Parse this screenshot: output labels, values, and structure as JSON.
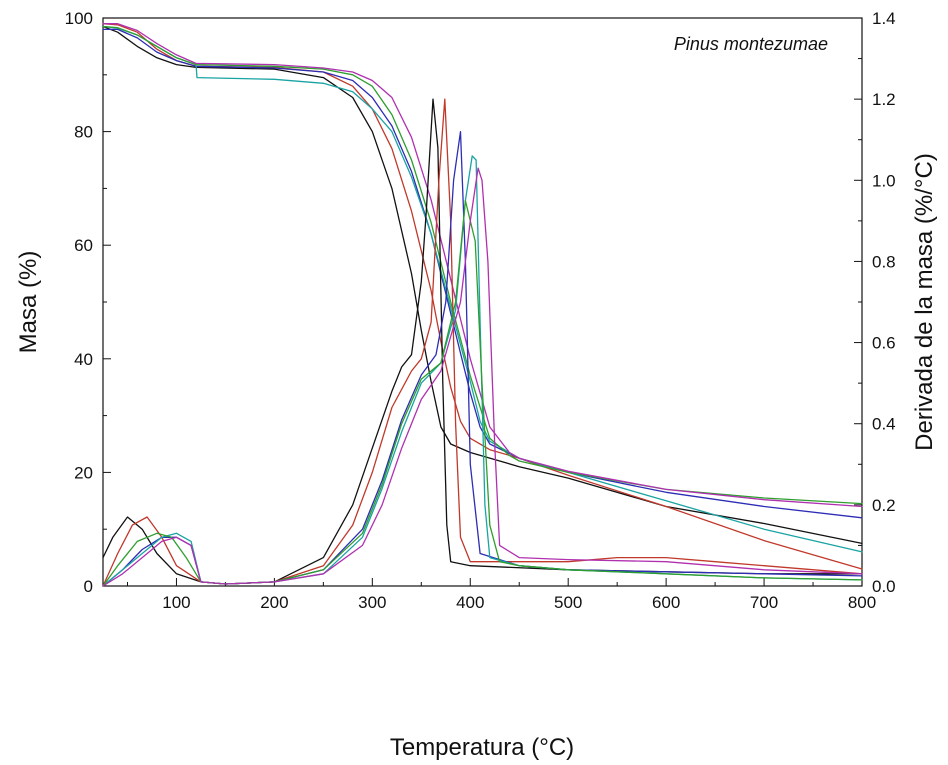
{
  "chart_data": {
    "type": "line",
    "title": "",
    "annotation": "Pinus montezumae",
    "xlabel": "Temperatura (°C)",
    "ylabel_left": "Masa (%)",
    "ylabel_right": "Derivada de la masa (%/°C)",
    "xlim": [
      25,
      800
    ],
    "ylim_left": [
      0,
      100
    ],
    "ylim_right": [
      0,
      1.4
    ],
    "x_ticks": [
      "100",
      "200",
      "300",
      "400",
      "500",
      "600",
      "700",
      "800"
    ],
    "y_ticks_left": [
      "0",
      "20",
      "40",
      "60",
      "80",
      "100"
    ],
    "y_ticks_right": [
      "0.0",
      "0.2",
      "0.4",
      "0.6",
      "0.8",
      "1.0",
      "1.2",
      "1.4"
    ],
    "grid": false,
    "legend": "none",
    "series": [
      {
        "color": "#111111",
        "axis": "left",
        "x": [
          25,
          40,
          60,
          80,
          100,
          120,
          200,
          250,
          280,
          300,
          320,
          340,
          350,
          360,
          370,
          380,
          400,
          450,
          500,
          600,
          700,
          800
        ],
        "y": [
          98.5,
          97.5,
          95,
          93,
          91.8,
          91.3,
          91,
          89.5,
          86,
          80,
          70,
          55,
          45,
          36,
          28,
          25,
          23.5,
          21,
          19,
          14,
          11,
          7.5
        ]
      },
      {
        "color": "#c0392b",
        "axis": "left",
        "x": [
          25,
          40,
          60,
          80,
          100,
          120,
          200,
          250,
          280,
          300,
          320,
          340,
          360,
          370,
          380,
          390,
          400,
          420,
          450,
          500,
          600,
          700,
          800
        ],
        "y": [
          99,
          98.8,
          97.5,
          94.5,
          92.5,
          91.5,
          91.3,
          90.5,
          88,
          84,
          77,
          66,
          52,
          43,
          35,
          29,
          26,
          24,
          22.5,
          19.5,
          14,
          8,
          3
        ]
      },
      {
        "color": "#2d2db5",
        "axis": "left",
        "x": [
          25,
          40,
          60,
          80,
          100,
          120,
          200,
          250,
          280,
          300,
          320,
          340,
          360,
          380,
          400,
          410,
          420,
          450,
          500,
          600,
          700,
          800
        ],
        "y": [
          98,
          98,
          96.5,
          94,
          92.5,
          91.5,
          91.2,
          90.5,
          89,
          86,
          81,
          73,
          62,
          48,
          34,
          28,
          25,
          22.5,
          20,
          16.5,
          14,
          12
        ]
      },
      {
        "color": "#1aa3a3",
        "axis": "left",
        "x": [
          25,
          40,
          60,
          80,
          100,
          120,
          121,
          200,
          250,
          280,
          300,
          320,
          340,
          360,
          380,
          400,
          410,
          420,
          450,
          500,
          600,
          700,
          800
        ],
        "y": [
          98.5,
          98.2,
          97,
          95,
          93,
          91.8,
          89.5,
          89.2,
          88.5,
          87,
          84,
          80,
          72,
          62,
          49,
          36,
          29,
          25.5,
          22.5,
          20,
          15,
          10,
          6
        ]
      },
      {
        "color": "#2e9e2e",
        "axis": "left",
        "x": [
          25,
          40,
          60,
          80,
          100,
          120,
          200,
          250,
          280,
          300,
          320,
          340,
          360,
          380,
          400,
          420,
          440,
          450,
          500,
          600,
          700,
          800
        ],
        "y": [
          98.5,
          98.3,
          97,
          95,
          93,
          91.8,
          91.5,
          91,
          90,
          88,
          83,
          75,
          64,
          50,
          37,
          26,
          23,
          22,
          20,
          17,
          15.5,
          14.5
        ]
      },
      {
        "color": "#b030b0",
        "axis": "left",
        "x": [
          25,
          40,
          60,
          80,
          100,
          120,
          200,
          250,
          280,
          300,
          320,
          340,
          360,
          380,
          400,
          420,
          440,
          450,
          500,
          600,
          700,
          800
        ],
        "y": [
          99,
          99,
          97.8,
          95.5,
          93.5,
          92,
          91.8,
          91.2,
          90.5,
          89,
          86,
          79,
          68,
          54,
          40,
          28,
          23.5,
          22.5,
          20.2,
          17,
          15.2,
          14
        ]
      },
      {
        "color": "#111111",
        "axis": "right",
        "x": [
          25,
          35,
          50,
          65,
          80,
          100,
          125,
          150,
          200,
          250,
          280,
          300,
          320,
          330,
          340,
          350,
          355,
          362,
          367,
          372,
          376,
          380,
          400,
          500,
          600,
          700,
          800
        ],
        "y": [
          0.07,
          0.12,
          0.17,
          0.14,
          0.08,
          0.03,
          0.01,
          0.005,
          0.01,
          0.07,
          0.2,
          0.34,
          0.48,
          0.54,
          0.57,
          0.75,
          0.92,
          1.2,
          1.08,
          0.5,
          0.15,
          0.06,
          0.05,
          0.04,
          0.035,
          0.03,
          0.03
        ]
      },
      {
        "color": "#c0392b",
        "axis": "right",
        "x": [
          25,
          40,
          55,
          70,
          85,
          100,
          125,
          150,
          200,
          250,
          280,
          300,
          320,
          340,
          350,
          360,
          368,
          374,
          380,
          385,
          390,
          400,
          450,
          500,
          550,
          600,
          650,
          700,
          800
        ],
        "y": [
          0.0,
          0.08,
          0.15,
          0.17,
          0.12,
          0.05,
          0.01,
          0.005,
          0.01,
          0.05,
          0.15,
          0.28,
          0.44,
          0.53,
          0.56,
          0.65,
          1.0,
          1.2,
          0.9,
          0.4,
          0.12,
          0.06,
          0.06,
          0.06,
          0.07,
          0.07,
          0.06,
          0.05,
          0.03
        ]
      },
      {
        "color": "#2d2db5",
        "axis": "right",
        "x": [
          25,
          45,
          65,
          85,
          100,
          115,
          125,
          150,
          200,
          250,
          290,
          310,
          330,
          350,
          365,
          375,
          383,
          390,
          395,
          400,
          410,
          450,
          500,
          600,
          700,
          800
        ],
        "y": [
          0.0,
          0.04,
          0.09,
          0.12,
          0.12,
          0.1,
          0.01,
          0.005,
          0.01,
          0.04,
          0.14,
          0.26,
          0.41,
          0.52,
          0.57,
          0.7,
          1.0,
          1.12,
          0.8,
          0.3,
          0.08,
          0.05,
          0.04,
          0.035,
          0.03,
          0.025
        ]
      },
      {
        "color": "#1aa3a3",
        "axis": "right",
        "x": [
          25,
          45,
          65,
          85,
          100,
          115,
          125,
          150,
          200,
          250,
          290,
          310,
          330,
          350,
          370,
          385,
          395,
          402,
          406,
          410,
          415,
          420,
          450,
          500,
          600,
          700,
          800
        ],
        "y": [
          0.0,
          0.04,
          0.08,
          0.12,
          0.13,
          0.11,
          0.01,
          0.005,
          0.01,
          0.03,
          0.12,
          0.24,
          0.38,
          0.5,
          0.55,
          0.68,
          0.95,
          1.06,
          1.05,
          0.65,
          0.2,
          0.07,
          0.05,
          0.04,
          0.03,
          0.02,
          0.015
        ]
      },
      {
        "color": "#2e9e2e",
        "axis": "right",
        "x": [
          25,
          40,
          60,
          80,
          95,
          110,
          125,
          150,
          200,
          250,
          290,
          310,
          330,
          350,
          370,
          385,
          395,
          405,
          412,
          420,
          430,
          450,
          500,
          600,
          700,
          800
        ],
        "y": [
          0.0,
          0.05,
          0.11,
          0.13,
          0.12,
          0.07,
          0.01,
          0.005,
          0.01,
          0.04,
          0.13,
          0.25,
          0.4,
          0.51,
          0.55,
          0.7,
          0.95,
          0.85,
          0.5,
          0.15,
          0.06,
          0.05,
          0.04,
          0.03,
          0.02,
          0.015
        ]
      },
      {
        "color": "#b030b0",
        "axis": "right",
        "x": [
          25,
          45,
          65,
          85,
          100,
          115,
          125,
          150,
          200,
          250,
          290,
          310,
          330,
          350,
          370,
          390,
          400,
          408,
          412,
          418,
          425,
          430,
          450,
          500,
          600,
          700,
          800
        ],
        "y": [
          0.0,
          0.03,
          0.07,
          0.11,
          0.12,
          0.1,
          0.01,
          0.005,
          0.01,
          0.03,
          0.1,
          0.2,
          0.34,
          0.46,
          0.53,
          0.7,
          0.9,
          1.03,
          1.0,
          0.8,
          0.35,
          0.1,
          0.07,
          0.065,
          0.06,
          0.04,
          0.03
        ]
      }
    ]
  }
}
